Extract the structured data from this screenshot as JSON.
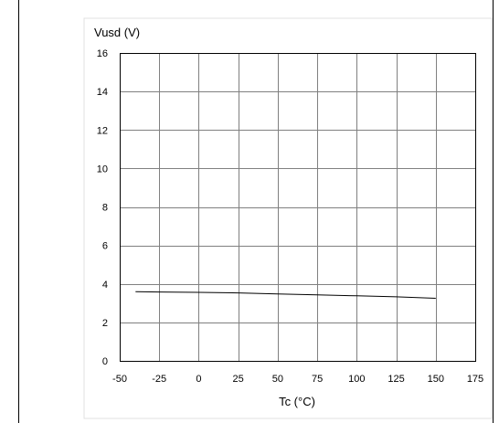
{
  "chart_data": {
    "type": "line",
    "title": "",
    "ylabel": "Vusd (V)",
    "xlabel": "Tc (°C)",
    "xlim": [
      -50,
      175
    ],
    "ylim": [
      0,
      16
    ],
    "x_ticks": [
      -50,
      -25,
      0,
      25,
      50,
      75,
      100,
      125,
      150,
      175
    ],
    "y_ticks": [
      0,
      2,
      4,
      6,
      8,
      10,
      12,
      14,
      16
    ],
    "grid": true,
    "legend": "none",
    "series": [
      {
        "x": [
          -40,
          -25,
          0,
          25,
          50,
          75,
          100,
          125,
          150
        ],
        "y": [
          3.6,
          3.58,
          3.56,
          3.53,
          3.48,
          3.43,
          3.38,
          3.33,
          3.25
        ],
        "color": "#000000"
      }
    ],
    "colors": {
      "grid": "#808080",
      "line": "#000000",
      "frame": "#000000"
    }
  }
}
